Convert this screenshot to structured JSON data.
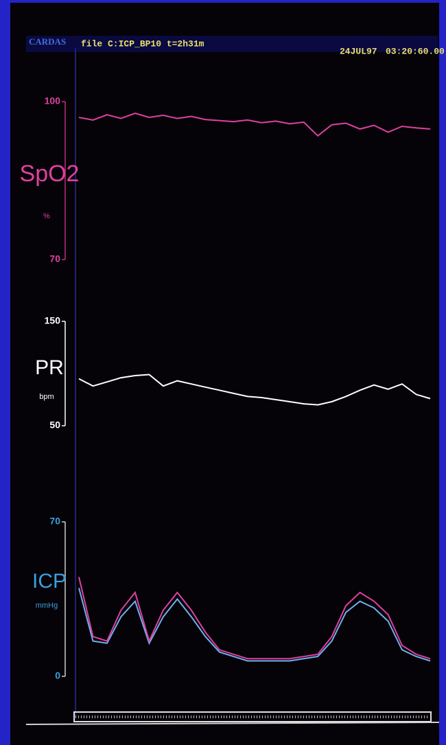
{
  "header": {
    "app": "CARDAS",
    "file": "file C:ICP_BP10 t=2h31m",
    "date": "24JUL97",
    "time": "03:20:60.00"
  },
  "chart_data": [
    {
      "type": "line",
      "ylabel": "SpO2",
      "yunit": "%",
      "color": "#e040a0",
      "values": [
        97,
        96.5,
        97.5,
        96.8,
        97.8,
        97,
        97.4,
        96.8,
        97.2,
        96.6,
        96.4,
        96.2,
        96.5,
        96.0,
        96.3,
        95.8,
        96.1,
        93.5,
        95.6,
        95.9,
        94.8,
        95.5,
        94.2,
        95.3,
        95.0,
        94.8
      ],
      "ylim": [
        70,
        100
      ],
      "yticks": [
        70,
        100
      ]
    },
    {
      "type": "line",
      "ylabel": "PR",
      "yunit": "bpm",
      "color": "#ffffff",
      "values": [
        95,
        88,
        92,
        96,
        98,
        99,
        88,
        93,
        90,
        87,
        84,
        81,
        78,
        77,
        75,
        73,
        71,
        70,
        73,
        78,
        84,
        89,
        85,
        90,
        80,
        76
      ],
      "ylim": [
        50,
        150
      ],
      "yticks": [
        50,
        150
      ]
    },
    {
      "type": "line",
      "ylabel": "ICP",
      "yunit": "mmHg",
      "series": [
        {
          "color": "#70b0f0",
          "values": [
            40,
            16,
            15,
            27,
            34,
            15,
            27,
            35,
            27,
            18,
            11,
            9,
            7,
            7,
            7,
            7,
            8,
            9,
            16,
            29,
            34,
            31,
            25,
            12,
            9,
            7
          ]
        },
        {
          "color": "#e040a0",
          "values": [
            45,
            18,
            16,
            30,
            38,
            16,
            30,
            38,
            30,
            20,
            12,
            10,
            8,
            8,
            8,
            8,
            9,
            10,
            18,
            32,
            38,
            34,
            28,
            14,
            10,
            8
          ]
        }
      ],
      "ylim": [
        0,
        70
      ],
      "yticks": [
        0,
        70
      ]
    }
  ]
}
